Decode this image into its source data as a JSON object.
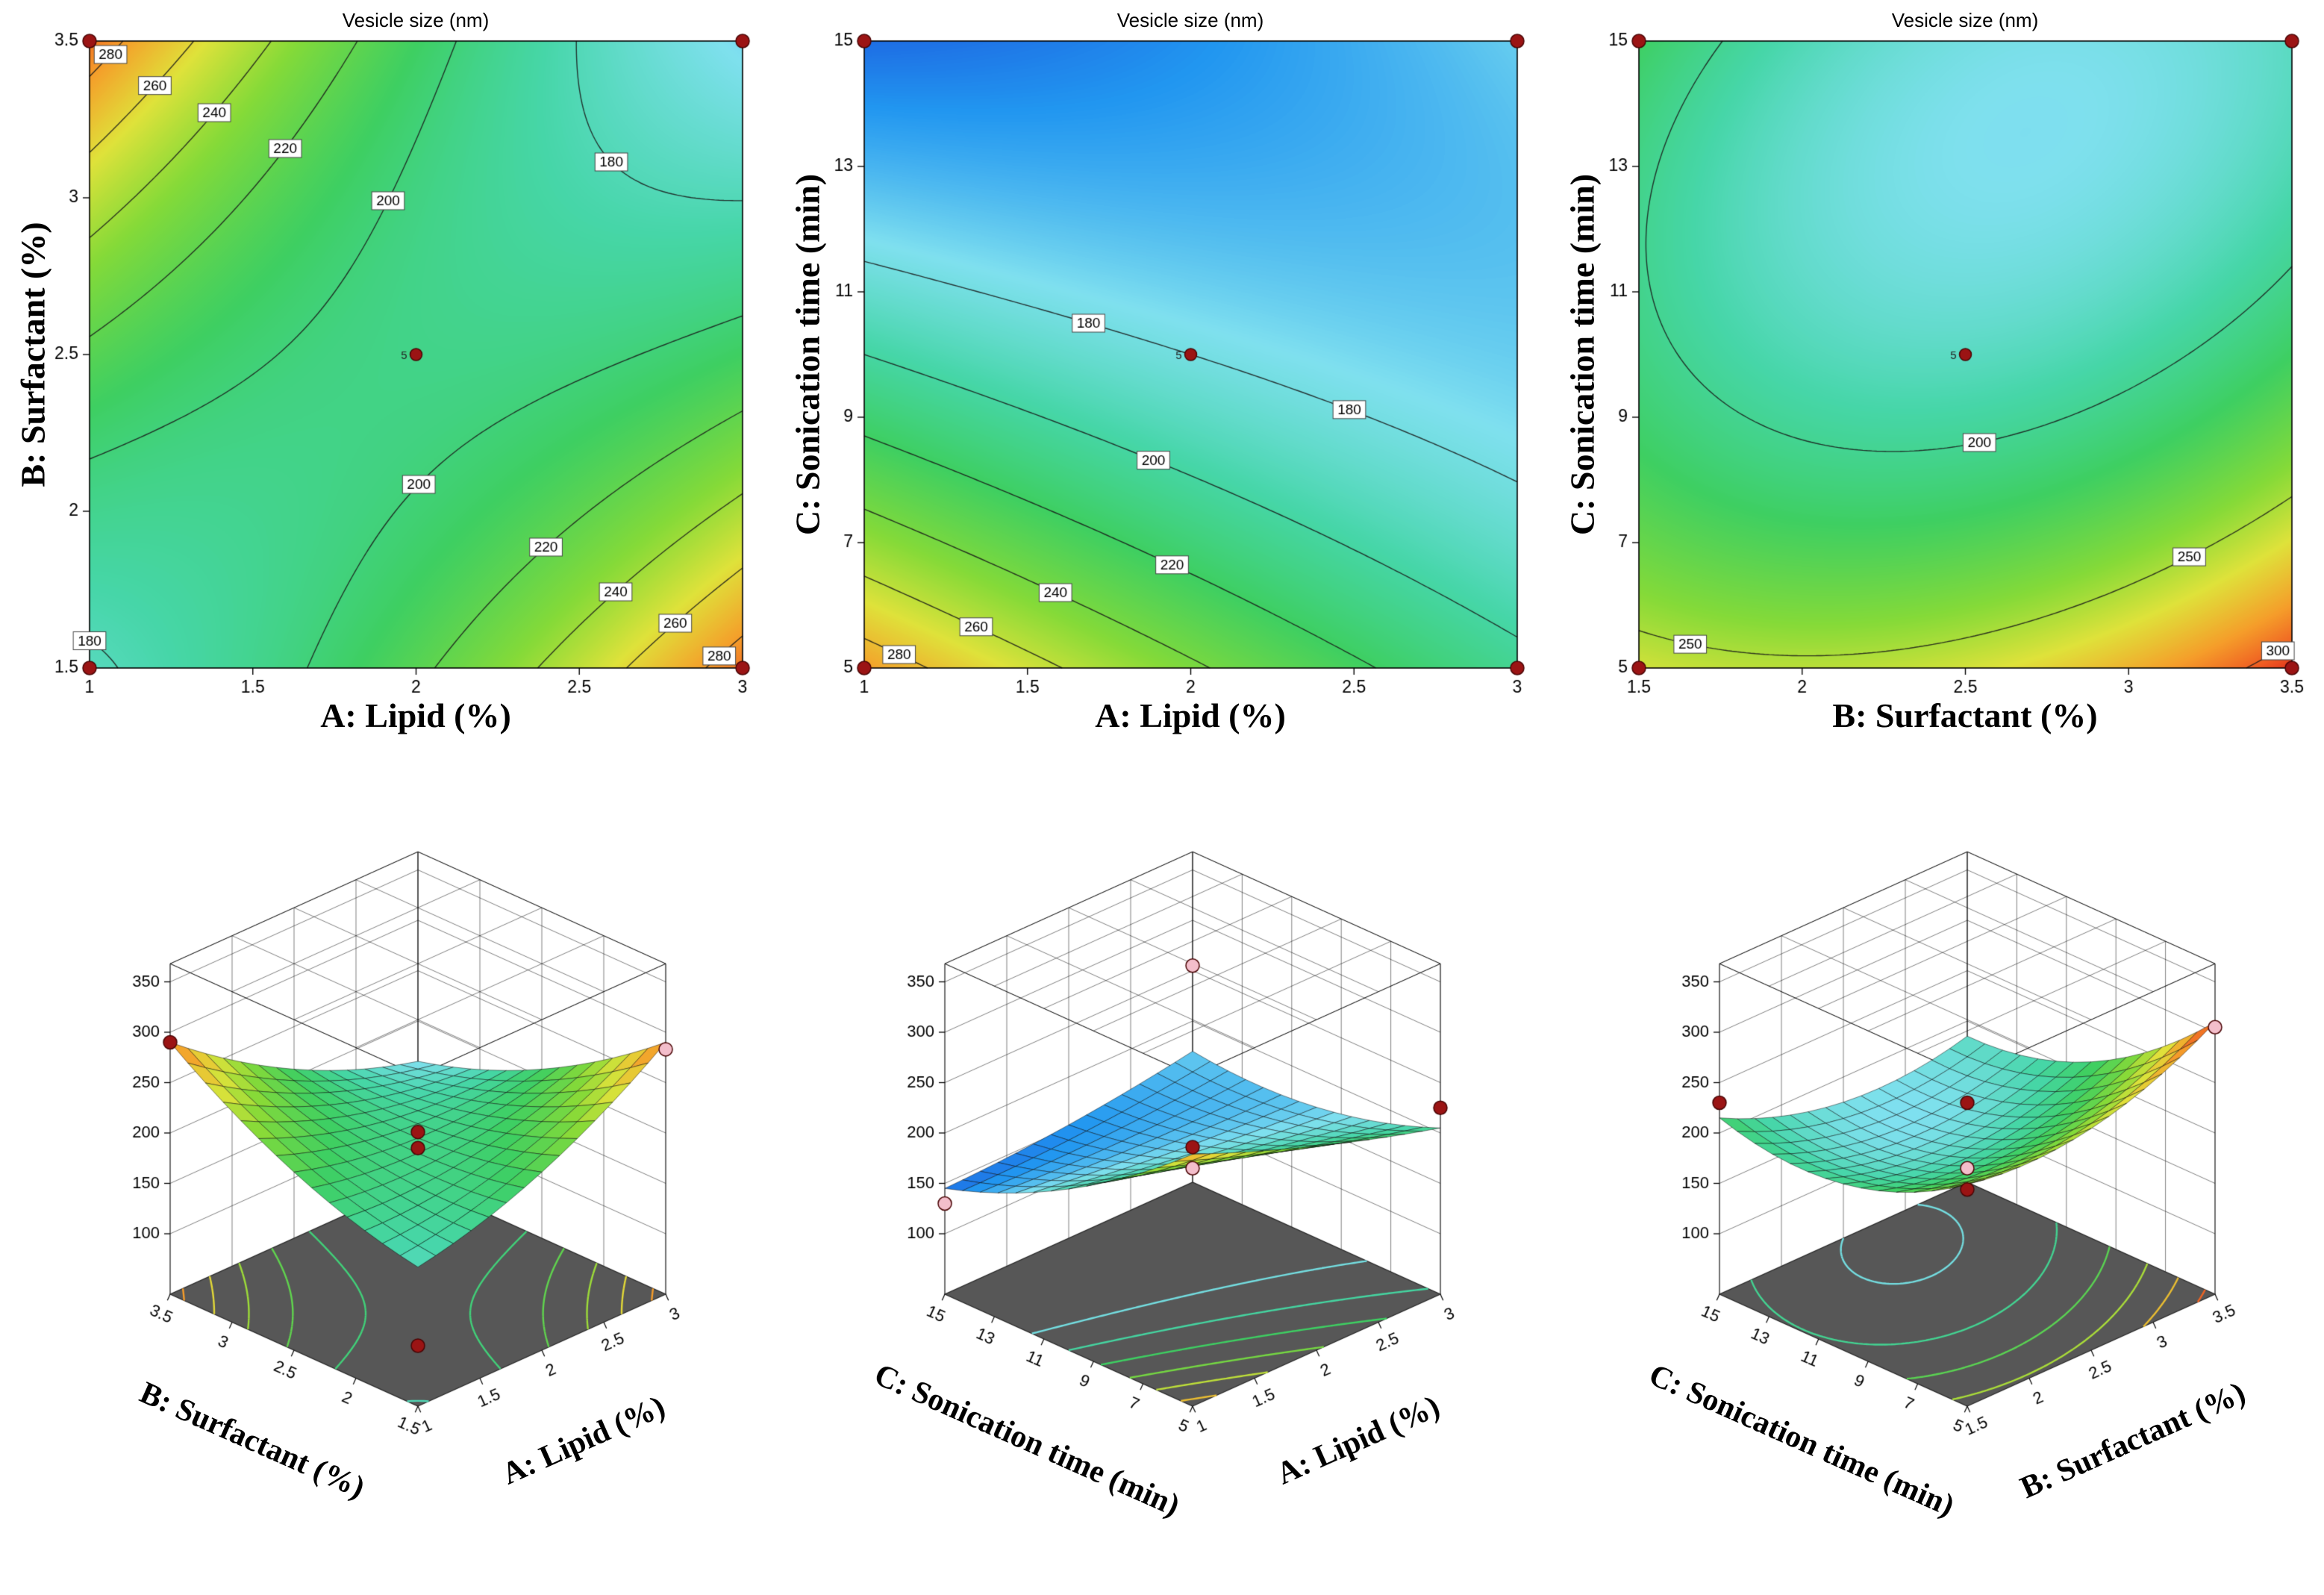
{
  "figure": {
    "background": "#ffffff",
    "response_label": "Vesicle size (nm)"
  },
  "color_scale": {
    "stops": [
      [
        0,
        "#1a3ed6"
      ],
      [
        0.1,
        "#2196f0"
      ],
      [
        0.22,
        "#7fe0ef"
      ],
      [
        0.34,
        "#46d6a8"
      ],
      [
        0.46,
        "#3ecf62"
      ],
      [
        0.6,
        "#86da38"
      ],
      [
        0.72,
        "#dfe23a"
      ],
      [
        0.84,
        "#f59e2a"
      ],
      [
        0.93,
        "#ef5c22"
      ],
      [
        1,
        "#d91e18"
      ]
    ]
  },
  "floor_color": "#575757",
  "point_colors": {
    "red": "#9b1414",
    "pink": "#f3becb"
  },
  "chart_data": [
    {
      "type": "contour",
      "title": "Vesicle size (nm)",
      "xlabel": "A: Lipid (%)",
      "ylabel": "B: Surfactant (%)",
      "xmin": 1,
      "xmax": 3,
      "ymin": 1.5,
      "ymax": 3.5,
      "xticks": [
        1,
        1.5,
        2,
        2.5,
        3
      ],
      "yticks": [
        1.5,
        2,
        2.5,
        3,
        3.5
      ],
      "model": {
        "c": 195,
        "x": -4.5,
        "y": -4.5,
        "xy": -60.5,
        "x2": 17.25,
        "y2": 17.25
      },
      "levels": [
        180,
        200,
        220,
        240,
        260,
        280
      ],
      "scale": {
        "vmin": 120,
        "vmax": 310
      },
      "contour_labels": [
        {
          "level": 280,
          "x": 1.09,
          "y": 3.44
        },
        {
          "level": 260,
          "x": 1.2,
          "y": 3.36
        },
        {
          "level": 240,
          "x": 1.36,
          "y": 3.28
        },
        {
          "level": 220,
          "x": 1.56,
          "y": 3.18
        },
        {
          "level": 200,
          "x": 1.75,
          "y": 3.07
        },
        {
          "level": 180,
          "x": 2.42,
          "y": 2.95
        },
        {
          "level": 180,
          "x": 1.08,
          "y": 1.95
        },
        {
          "level": 200,
          "x": 2.18,
          "y": 1.93
        },
        {
          "level": 220,
          "x": 2.45,
          "y": 1.82
        },
        {
          "level": 240,
          "x": 2.63,
          "y": 1.72
        },
        {
          "level": 260,
          "x": 2.8,
          "y": 1.63
        },
        {
          "level": 280,
          "x": 2.92,
          "y": 1.55
        }
      ],
      "center_point": {
        "x": 2,
        "y": 2.5,
        "label": "5"
      },
      "design_points": [
        [
          1,
          1.5
        ],
        [
          3,
          1.5
        ],
        [
          1,
          3.5
        ],
        [
          3,
          3.5
        ]
      ]
    },
    {
      "type": "contour",
      "title": "Vesicle size (nm)",
      "xlabel": "A: Lipid (%)",
      "ylabel": "C: Sonication time (min)",
      "xmin": 1,
      "xmax": 3,
      "ymin": 5,
      "ymax": 15,
      "xticks": [
        1,
        1.5,
        2,
        2.5,
        3
      ],
      "yticks": [
        5,
        7,
        9,
        11,
        13,
        15
      ],
      "model": {
        "c": 180,
        "x": -15,
        "y": -45,
        "xy": 27.5,
        "x2": 5,
        "y2": 17.5
      },
      "levels": [
        180,
        200,
        220,
        240,
        260,
        280
      ],
      "scale": {
        "vmin": 135,
        "vmax": 320
      },
      "contour_labels": [
        {
          "level": 180,
          "x": 1.85,
          "y": 13.1
        },
        {
          "level": 180,
          "x": 2.56,
          "y": 10.1
        },
        {
          "level": 200,
          "x": 1.85,
          "y": 7.9
        },
        {
          "level": 220,
          "x": 1.95,
          "y": 6.8
        },
        {
          "level": 240,
          "x": 1.6,
          "y": 6.3
        },
        {
          "level": 260,
          "x": 1.35,
          "y": 5.7
        },
        {
          "level": 280,
          "x": 1.1,
          "y": 5.15
        }
      ],
      "center_point": {
        "x": 2,
        "y": 10,
        "label": "5"
      },
      "design_points": [
        [
          1,
          5
        ],
        [
          3,
          5
        ],
        [
          1,
          15
        ],
        [
          3,
          15
        ]
      ]
    },
    {
      "type": "contour",
      "title": "Vesicle size (nm)",
      "xlabel": "B: Surfactant (%)",
      "ylabel": "C: Sonication time (min)",
      "xmin": 1.5,
      "xmax": 3.5,
      "ymin": 5,
      "ymax": 15,
      "xticks": [
        1.5,
        2,
        2.5,
        3,
        3.5
      ],
      "yticks": [
        5,
        7,
        9,
        11,
        13,
        15
      ],
      "model": {
        "c": 185,
        "x": 5,
        "y": -42.5,
        "xy": -20,
        "x2": 25,
        "y2": 32.5
      },
      "levels": [
        200,
        250,
        300
      ],
      "scale": {
        "vmin": 130,
        "vmax": 315
      },
      "contour_labels": [
        {
          "level": 250,
          "x": 1.68,
          "y": 5.9
        },
        {
          "level": 200,
          "x": 2.55,
          "y": 8.5
        },
        {
          "level": 250,
          "x": 3.2,
          "y": 6.6
        },
        {
          "level": 300,
          "x": 3.45,
          "y": 5.3
        }
      ],
      "center_point": {
        "x": 2.5,
        "y": 10,
        "label": "5"
      },
      "design_points": [
        [
          1.5,
          5
        ],
        [
          3.5,
          5
        ],
        [
          1.5,
          15
        ],
        [
          3.5,
          15
        ]
      ]
    },
    {
      "type": "surface3d",
      "xlabel": "A: Lipid (%)",
      "ylabel": "B: Surfactant (%)",
      "xmin": 1,
      "xmax": 3,
      "ymin": 1.5,
      "ymax": 3.5,
      "xticks": [
        1,
        1.5,
        2,
        2.5,
        3
      ],
      "yticks": [
        1.5,
        2,
        2.5,
        3,
        3.5
      ],
      "zticks": [
        100,
        150,
        200,
        250,
        300,
        350
      ],
      "zlim": [
        100,
        350
      ],
      "model": {
        "c": 195,
        "x": -4.5,
        "y": -4.5,
        "xy": -60.5,
        "x2": 17.25,
        "y2": 17.25
      },
      "scale": {
        "vmin": 120,
        "vmax": 310
      },
      "levels": [
        180,
        200,
        220,
        240,
        260,
        280
      ],
      "points": [
        {
          "u": 0,
          "v": 1,
          "value": 290,
          "kind": "red"
        },
        {
          "u": 1,
          "v": 0,
          "value": 283,
          "kind": "pink"
        },
        {
          "u": 0,
          "v": 0,
          "value": 100,
          "kind": "red"
        },
        {
          "u": 0.5,
          "v": 0.5,
          "value": 185,
          "kind": "red"
        },
        {
          "u": 0.5,
          "v": 0.5,
          "value": 201,
          "kind": "red"
        }
      ]
    },
    {
      "type": "surface3d",
      "xlabel": "A: Lipid (%)",
      "ylabel": "C: Sonication time (min)",
      "xmin": 1,
      "xmax": 3,
      "ymin": 5,
      "ymax": 15,
      "xticks": [
        1,
        1.5,
        2,
        2.5,
        3
      ],
      "yticks": [
        5,
        7,
        9,
        11,
        13,
        15
      ],
      "zticks": [
        100,
        150,
        200,
        250,
        300,
        350
      ],
      "zlim": [
        100,
        350
      ],
      "model": {
        "c": 180,
        "x": -15,
        "y": -45,
        "xy": 27.5,
        "x2": 5,
        "y2": 17.5
      },
      "scale": {
        "vmin": 135,
        "vmax": 320
      },
      "levels": [
        180,
        200,
        220,
        240,
        260,
        280
      ],
      "points": [
        {
          "u": 0,
          "v": 1,
          "value": 130,
          "kind": "pink"
        },
        {
          "u": 1,
          "v": 0,
          "value": 225,
          "kind": "red"
        },
        {
          "u": 1,
          "v": 1,
          "value": 255,
          "kind": "pink"
        },
        {
          "u": 0.5,
          "v": 0.5,
          "value": 165,
          "kind": "pink"
        },
        {
          "u": 0.5,
          "v": 0.5,
          "value": 186,
          "kind": "red"
        }
      ]
    },
    {
      "type": "surface3d",
      "xlabel": "B: Surfactant (%)",
      "ylabel": "C: Sonication time (min)",
      "xmin": 1.5,
      "xmax": 3.5,
      "ymin": 5,
      "ymax": 15,
      "xticks": [
        1.5,
        2,
        2.5,
        3,
        3.5
      ],
      "yticks": [
        5,
        7,
        9,
        11,
        13,
        15
      ],
      "zticks": [
        100,
        150,
        200,
        250,
        300,
        350
      ],
      "zlim": [
        100,
        350
      ],
      "model": {
        "c": 185,
        "x": 5,
        "y": -42.5,
        "xy": -20,
        "x2": 25,
        "y2": 32.5
      },
      "scale": {
        "vmin": 130,
        "vmax": 315
      },
      "levels": [
        175,
        200,
        225,
        250,
        275,
        300
      ],
      "points": [
        {
          "u": 0,
          "v": 1,
          "value": 230,
          "kind": "red"
        },
        {
          "u": 1,
          "v": 0,
          "value": 305,
          "kind": "pink"
        },
        {
          "u": 0,
          "v": 0,
          "value": 255,
          "kind": "red"
        },
        {
          "u": 0.5,
          "v": 0.5,
          "value": 165,
          "kind": "pink"
        },
        {
          "u": 0.5,
          "v": 0.5,
          "value": 230,
          "kind": "red"
        }
      ]
    }
  ]
}
